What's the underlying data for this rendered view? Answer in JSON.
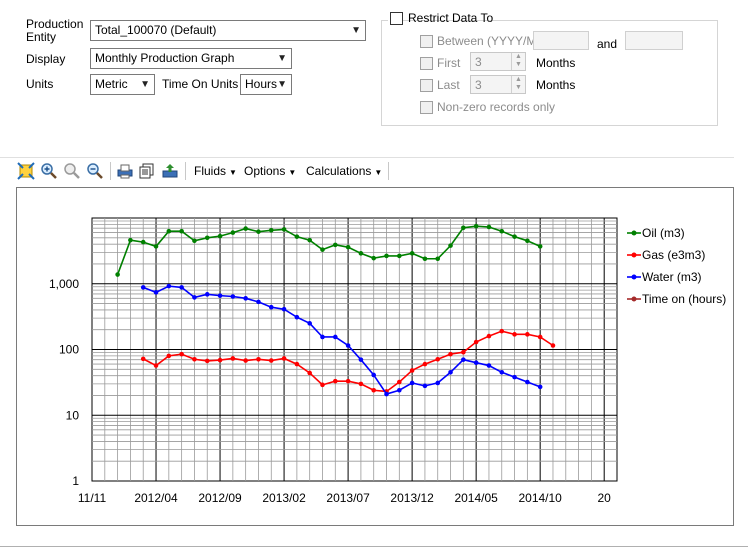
{
  "form": {
    "production_entity_label": "Production Entity",
    "production_entity_value": "Total_100070 (Default)",
    "display_label": "Display",
    "display_value": "Monthly Production Graph",
    "units_label": "Units",
    "units_value": "Metric",
    "time_on_units_label": "Time On Units",
    "time_on_units_value": "Hours"
  },
  "restrict": {
    "title": "Restrict Data To",
    "between_label": "Between (YYYY/MM",
    "and_label": "and",
    "first_label": "First",
    "first_value": "3",
    "first_unit": "Months",
    "last_label": "Last",
    "last_value": "3",
    "last_unit": "Months",
    "nonzero_label": "Non-zero records only"
  },
  "toolbar": {
    "icons": [
      "zoom-extents-icon",
      "zoom-in-icon",
      "zoom-region-icon",
      "zoom-out-icon",
      "print-icon",
      "copy-icon",
      "export-icon"
    ],
    "fluids_label": "Fluids",
    "options_label": "Options",
    "calculations_label": "Calculations"
  },
  "colors": {
    "oil": "#008000",
    "gas": "#ff0000",
    "water": "#0000ff",
    "time_on": "#a52a2a"
  },
  "chart_data": {
    "type": "line",
    "y_scale": "log",
    "ylim": [
      1,
      10000
    ],
    "y_ticks": [
      "1",
      "10",
      "100",
      "1,000"
    ],
    "x_ticks": [
      "11/11",
      "2012/04",
      "2012/09",
      "2013/02",
      "2013/07",
      "2013/12",
      "2014/05",
      "2014/10",
      "20"
    ],
    "grid": true,
    "legend_position": "right",
    "series": [
      {
        "name": "Oil (m3)",
        "color": "#008000",
        "points": [
          [
            "2012/01",
            1380
          ],
          [
            "2012/02",
            4600
          ],
          [
            "2012/03",
            4300
          ],
          [
            "2012/04",
            3700
          ],
          [
            "2012/05",
            6300
          ],
          [
            "2012/06",
            6300
          ],
          [
            "2012/07",
            4500
          ],
          [
            "2012/08",
            5000
          ],
          [
            "2012/09",
            5300
          ],
          [
            "2012/10",
            6000
          ],
          [
            "2012/11",
            6900
          ],
          [
            "2012/12",
            6200
          ],
          [
            "2013/01",
            6500
          ],
          [
            "2013/02",
            6700
          ],
          [
            "2013/03",
            5200
          ],
          [
            "2013/04",
            4600
          ],
          [
            "2013/05",
            3300
          ],
          [
            "2013/06",
            3900
          ],
          [
            "2013/07",
            3600
          ],
          [
            "2013/08",
            2900
          ],
          [
            "2013/09",
            2450
          ],
          [
            "2013/10",
            2650
          ],
          [
            "2013/11",
            2650
          ],
          [
            "2013/12",
            2900
          ],
          [
            "2014/01",
            2400
          ],
          [
            "2014/02",
            2400
          ],
          [
            "2014/03",
            3800
          ],
          [
            "2014/04",
            7100
          ],
          [
            "2014/05",
            7500
          ],
          [
            "2014/06",
            7300
          ],
          [
            "2014/07",
            6300
          ],
          [
            "2014/08",
            5200
          ],
          [
            "2014/09",
            4500
          ],
          [
            "2014/10",
            3700
          ]
        ]
      },
      {
        "name": "Gas (e3m3)",
        "color": "#ff0000",
        "points": [
          [
            "2012/03",
            72
          ],
          [
            "2012/04",
            57
          ],
          [
            "2012/05",
            80
          ],
          [
            "2012/06",
            85
          ],
          [
            "2012/07",
            71
          ],
          [
            "2012/08",
            67
          ],
          [
            "2012/09",
            69
          ],
          [
            "2012/10",
            73
          ],
          [
            "2012/11",
            68
          ],
          [
            "2012/12",
            71
          ],
          [
            "2013/01",
            68
          ],
          [
            "2013/02",
            73
          ],
          [
            "2013/03",
            60
          ],
          [
            "2013/04",
            44
          ],
          [
            "2013/05",
            29
          ],
          [
            "2013/06",
            33
          ],
          [
            "2013/07",
            33
          ],
          [
            "2013/08",
            30
          ],
          [
            "2013/09",
            24
          ],
          [
            "2013/10",
            23
          ],
          [
            "2013/11",
            32
          ],
          [
            "2013/12",
            48
          ],
          [
            "2014/01",
            60
          ],
          [
            "2014/02",
            71
          ],
          [
            "2014/03",
            85
          ],
          [
            "2014/04",
            91
          ],
          [
            "2014/05",
            130
          ],
          [
            "2014/06",
            160
          ],
          [
            "2014/07",
            190
          ],
          [
            "2014/08",
            170
          ],
          [
            "2014/09",
            170
          ],
          [
            "2014/10",
            155
          ],
          [
            "2014/11",
            115
          ]
        ]
      },
      {
        "name": "Water (m3)",
        "color": "#0000ff",
        "points": [
          [
            "2012/03",
            880
          ],
          [
            "2012/04",
            740
          ],
          [
            "2012/05",
            920
          ],
          [
            "2012/06",
            880
          ],
          [
            "2012/07",
            620
          ],
          [
            "2012/08",
            690
          ],
          [
            "2012/09",
            660
          ],
          [
            "2012/10",
            640
          ],
          [
            "2012/11",
            600
          ],
          [
            "2012/12",
            530
          ],
          [
            "2013/01",
            440
          ],
          [
            "2013/02",
            410
          ],
          [
            "2013/03",
            310
          ],
          [
            "2013/04",
            250
          ],
          [
            "2013/05",
            155
          ],
          [
            "2013/06",
            155
          ],
          [
            "2013/07",
            115
          ],
          [
            "2013/08",
            70
          ],
          [
            "2013/09",
            41
          ],
          [
            "2013/10",
            21
          ],
          [
            "2013/11",
            24
          ],
          [
            "2013/12",
            31
          ],
          [
            "2014/01",
            28
          ],
          [
            "2014/02",
            31
          ],
          [
            "2014/03",
            45
          ],
          [
            "2014/04",
            70
          ],
          [
            "2014/05",
            63
          ],
          [
            "2014/06",
            57
          ],
          [
            "2014/07",
            45
          ],
          [
            "2014/08",
            38
          ],
          [
            "2014/09",
            32
          ],
          [
            "2014/10",
            27
          ]
        ]
      },
      {
        "name": "Time on (hours)",
        "color": "#a52a2a",
        "points": []
      }
    ]
  }
}
